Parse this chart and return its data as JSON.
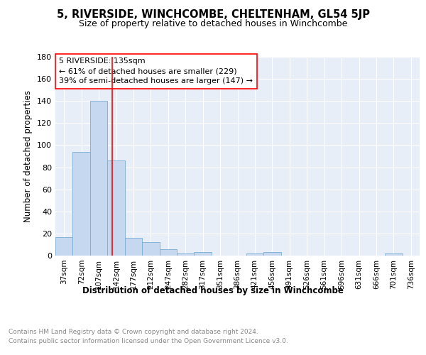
{
  "title": "5, RIVERSIDE, WINCHCOMBE, CHELTENHAM, GL54 5JP",
  "subtitle": "Size of property relative to detached houses in Winchcombe",
  "xlabel": "Distribution of detached houses by size in Winchcombe",
  "ylabel": "Number of detached properties",
  "bar_color": "#c5d8f0",
  "bar_edge_color": "#7aadd4",
  "background_color": "#e8eef8",
  "grid_color": "#ffffff",
  "categories": [
    "37sqm",
    "72sqm",
    "107sqm",
    "142sqm",
    "177sqm",
    "212sqm",
    "247sqm",
    "282sqm",
    "317sqm",
    "351sqm",
    "386sqm",
    "421sqm",
    "456sqm",
    "491sqm",
    "526sqm",
    "561sqm",
    "596sqm",
    "631sqm",
    "666sqm",
    "701sqm",
    "736sqm"
  ],
  "values": [
    17,
    94,
    140,
    86,
    16,
    12,
    6,
    2,
    3,
    0,
    0,
    2,
    3,
    0,
    0,
    0,
    0,
    0,
    0,
    2,
    0
  ],
  "annotation_line1": "5 RIVERSIDE: 135sqm",
  "annotation_line2": "← 61% of detached houses are smaller (229)",
  "annotation_line3": "39% of semi-detached houses are larger (147) →",
  "ylim": [
    0,
    180
  ],
  "yticks": [
    0,
    20,
    40,
    60,
    80,
    100,
    120,
    140,
    160,
    180
  ],
  "red_line_x": 2.77,
  "footer_line1": "Contains HM Land Registry data © Crown copyright and database right 2024.",
  "footer_line2": "Contains public sector information licensed under the Open Government Licence v3.0."
}
